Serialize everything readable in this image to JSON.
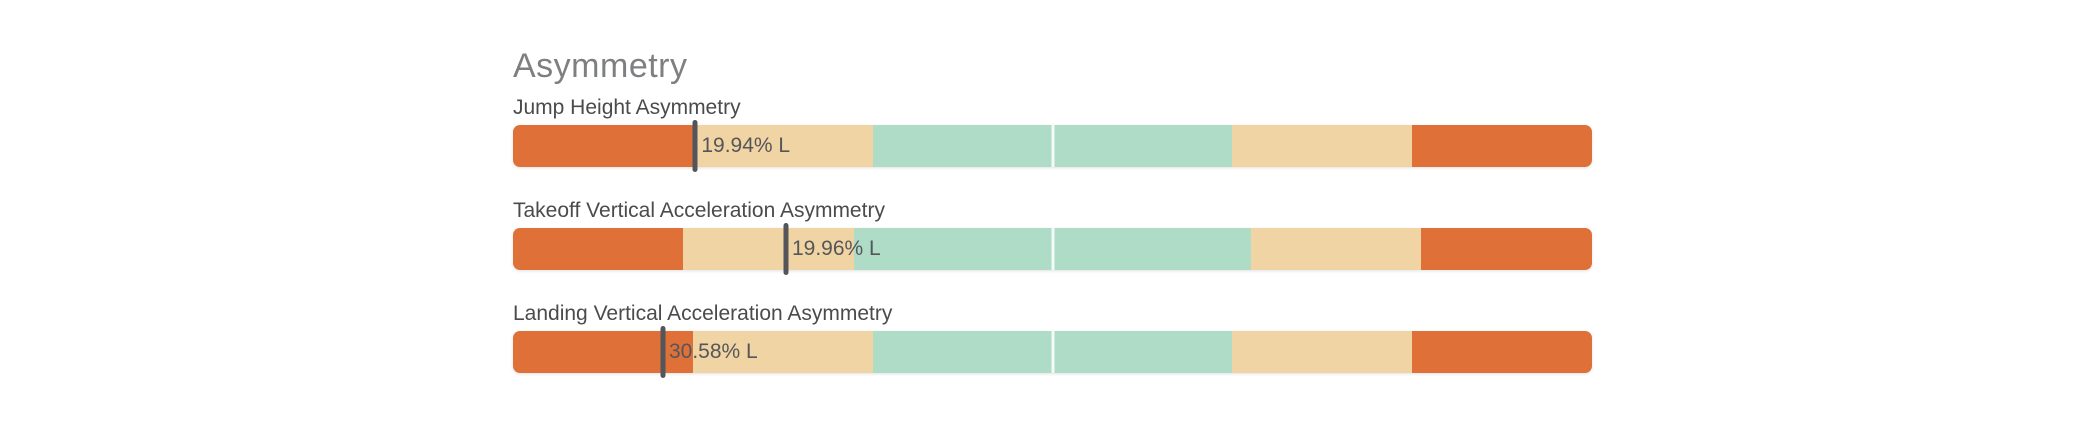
{
  "title": "Asymmetry",
  "colors": {
    "orange": "#df7038",
    "tan": "#f1d4a4",
    "mint": "#aedcc7",
    "marker": "#54555a",
    "center_divider": "rgba(255,255,255,0.85)",
    "title_text": "#7e7f81",
    "label_text": "#4b4b4d",
    "value_text": "#55565a",
    "background": "#ffffff"
  },
  "chart_data": {
    "type": "bar",
    "subtype": "bullet-asymmetry-group",
    "title": "Asymmetry",
    "legend_position": "none",
    "grid": false,
    "bars": [
      {
        "label": "Jump Height Asymmetry",
        "value": 19.94,
        "side": "L",
        "value_label": "19.94% L",
        "marker_position_pct": 16.9,
        "center_divider_pct": 50,
        "zones": [
          {
            "color": "orange",
            "width_pct": 16.67
          },
          {
            "color": "tan",
            "width_pct": 16.67
          },
          {
            "color": "mint",
            "width_pct": 33.33
          },
          {
            "color": "tan",
            "width_pct": 16.67
          },
          {
            "color": "orange",
            "width_pct": 16.66
          }
        ]
      },
      {
        "label": "Takeoff Vertical Acceleration Asymmetry",
        "value": 19.96,
        "side": "L",
        "value_label": "19.96% L",
        "marker_position_pct": 25.3,
        "center_divider_pct": 50,
        "zones": [
          {
            "color": "orange",
            "width_pct": 15.8
          },
          {
            "color": "tan",
            "width_pct": 15.8
          },
          {
            "color": "mint",
            "width_pct": 36.8
          },
          {
            "color": "tan",
            "width_pct": 15.8
          },
          {
            "color": "orange",
            "width_pct": 15.8
          }
        ]
      },
      {
        "label": "Landing Vertical Acceleration Asymmetry",
        "value": 30.58,
        "side": "L",
        "value_label": "30.58% L",
        "marker_position_pct": 13.9,
        "center_divider_pct": 50,
        "zones": [
          {
            "color": "orange",
            "width_pct": 16.67
          },
          {
            "color": "tan",
            "width_pct": 16.67
          },
          {
            "color": "mint",
            "width_pct": 33.33
          },
          {
            "color": "tan",
            "width_pct": 16.67
          },
          {
            "color": "orange",
            "width_pct": 16.66
          }
        ]
      }
    ]
  }
}
